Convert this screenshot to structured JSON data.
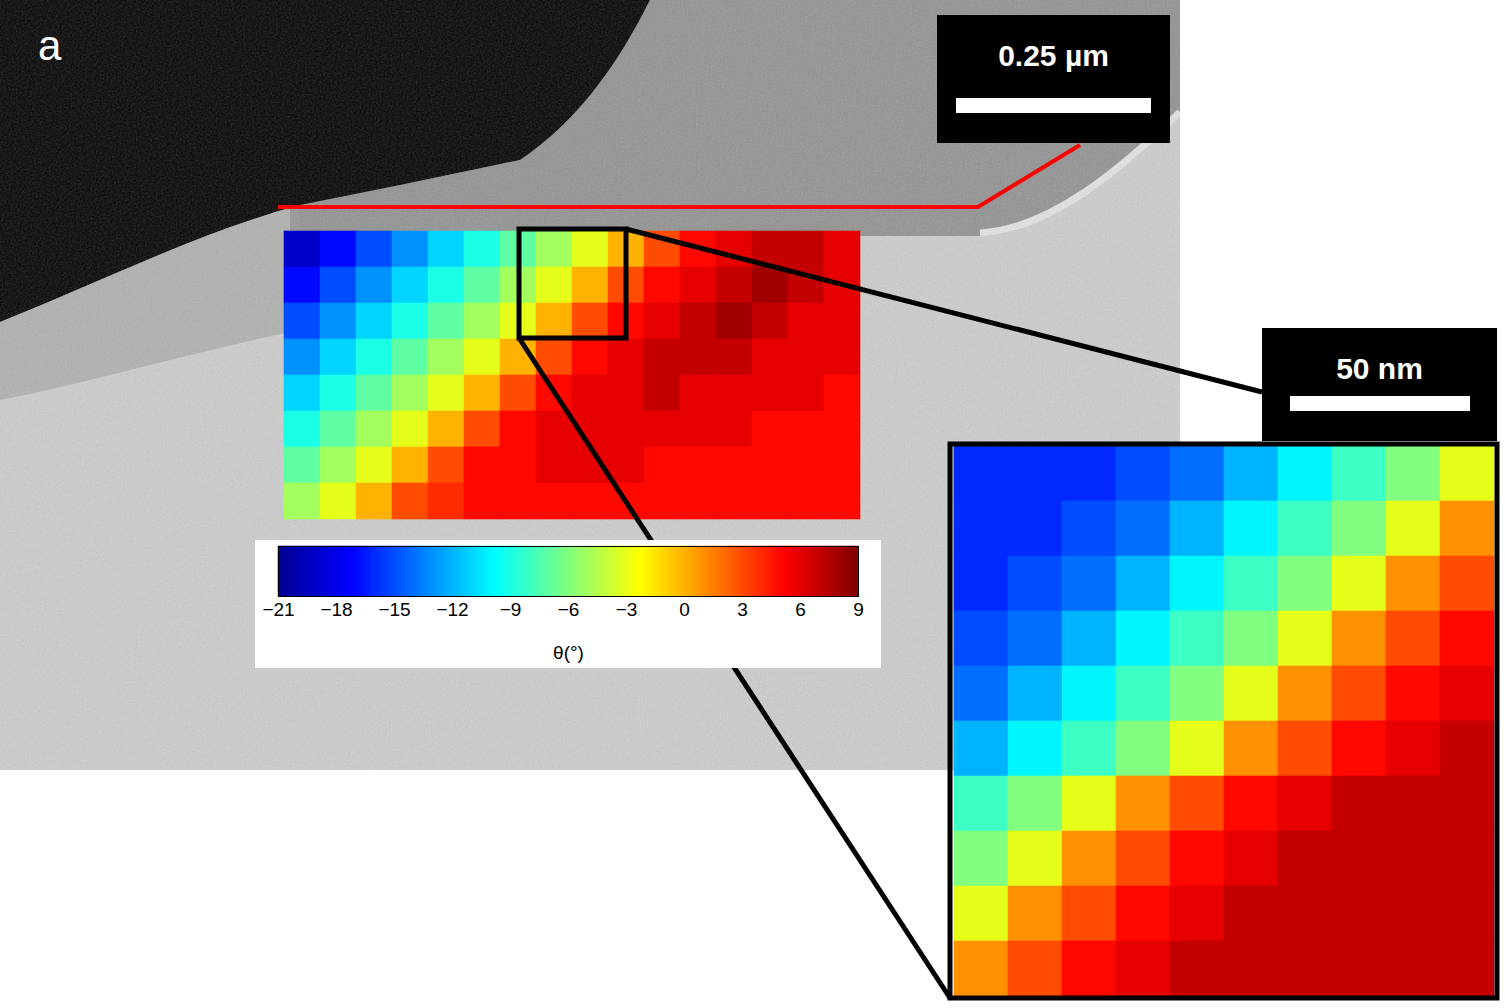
{
  "chart_data": [
    {
      "type": "heatmap",
      "panel_label": "a",
      "scale_bar": "0.25 µm",
      "tick_labels": false,
      "cells": [
        [
          -19,
          -17,
          -15,
          -13,
          -11,
          -9,
          -7,
          -5,
          -3,
          0,
          3,
          5,
          6,
          7,
          7,
          6
        ],
        [
          -17,
          -15,
          -13,
          -11,
          -9,
          -7,
          -5,
          -3,
          0,
          3,
          5,
          6,
          7,
          8,
          7,
          6
        ],
        [
          -15,
          -13,
          -11,
          -9,
          -7,
          -5,
          -3,
          0,
          3,
          5,
          6,
          7,
          8,
          7,
          6,
          6
        ],
        [
          -13,
          -11,
          -9,
          -7,
          -5,
          -3,
          0,
          3,
          5,
          6,
          7,
          7,
          7,
          6,
          6,
          6
        ],
        [
          -11,
          -9,
          -7,
          -5,
          -3,
          0,
          3,
          5,
          6,
          6,
          7,
          6,
          6,
          6,
          6,
          5
        ],
        [
          -9,
          -7,
          -5,
          -3,
          0,
          3,
          5,
          6,
          6,
          6,
          6,
          6,
          6,
          5,
          5,
          5
        ],
        [
          -7,
          -5,
          -3,
          0,
          3,
          5,
          5,
          6,
          6,
          6,
          5,
          5,
          5,
          5,
          5,
          5
        ],
        [
          -5,
          -3,
          0,
          3,
          4,
          5,
          5,
          5,
          5,
          5,
          5,
          5,
          5,
          5,
          5,
          5
        ]
      ],
      "colorbar": {
        "range": [
          -21,
          9
        ],
        "ticks": [
          -21,
          -18,
          -15,
          -12,
          -9,
          -6,
          -3,
          0,
          3,
          6,
          9
        ],
        "label": "θ(°)"
      }
    },
    {
      "type": "heatmap",
      "scale_bar": "50 nm",
      "tick_labels": false,
      "cells": [
        [
          -16,
          -16,
          -16,
          -15,
          -14,
          -12,
          -10,
          -8,
          -6,
          -3
        ],
        [
          -16,
          -16,
          -15,
          -14,
          -12,
          -10,
          -8,
          -6,
          -3,
          1
        ],
        [
          -16,
          -15,
          -14,
          -12,
          -10,
          -8,
          -6,
          -3,
          1,
          3
        ],
        [
          -15,
          -14,
          -12,
          -10,
          -8,
          -6,
          -3,
          1,
          3,
          5
        ],
        [
          -14,
          -12,
          -10,
          -8,
          -6,
          -3,
          1,
          3,
          5,
          6
        ],
        [
          -12,
          -10,
          -8,
          -6,
          -3,
          1,
          3,
          5,
          6,
          7
        ],
        [
          -8,
          -6,
          -3,
          1,
          3,
          5,
          6,
          7,
          7,
          7
        ],
        [
          -6,
          -3,
          1,
          3,
          5,
          6,
          7,
          7,
          7,
          7
        ],
        [
          -3,
          1,
          3,
          5,
          6,
          7,
          7,
          7,
          7,
          7
        ],
        [
          1,
          3,
          5,
          6,
          7,
          7,
          7,
          7,
          7,
          7
        ]
      ]
    }
  ]
}
